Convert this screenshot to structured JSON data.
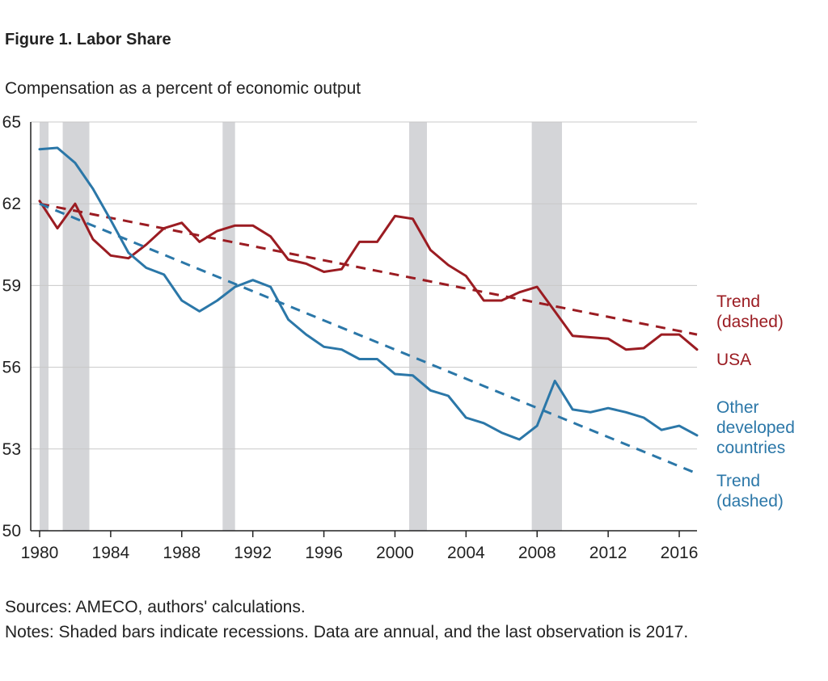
{
  "figure": {
    "title": "Figure 1. Labor Share",
    "subtitle": "Compensation as a percent of economic output",
    "sources": "Sources: AMECO, authors' calculations.",
    "notes": "Notes: Shaded bars indicate recessions. Data are annual, and the last observation is 2017."
  },
  "colors": {
    "usa": "#9b1c22",
    "other": "#2b77a8",
    "recession": "#d4d5d8",
    "grid": "#c8c8c8",
    "axis": "#222222"
  },
  "chart_data": {
    "type": "line",
    "title": "Figure 1. Labor Share",
    "subtitle": "Compensation as a percent of economic output",
    "xlim": [
      1979.5,
      2017
    ],
    "ylim": [
      50,
      65
    ],
    "x_ticks": [
      1980,
      1984,
      1988,
      1992,
      1996,
      2000,
      2004,
      2008,
      2012,
      2016
    ],
    "y_ticks": [
      50,
      53,
      56,
      59,
      62,
      65
    ],
    "grid": "horizontal",
    "recessions": [
      [
        1980.0,
        1980.5
      ],
      [
        1981.3,
        1982.8
      ],
      [
        1990.3,
        1991.0
      ],
      [
        2000.8,
        2001.8
      ],
      [
        2007.7,
        2009.4
      ]
    ],
    "x": [
      1980,
      1981,
      1982,
      1983,
      1984,
      1985,
      1986,
      1987,
      1988,
      1989,
      1990,
      1991,
      1992,
      1993,
      1994,
      1995,
      1996,
      1997,
      1998,
      1999,
      2000,
      2001,
      2002,
      2003,
      2004,
      2005,
      2006,
      2007,
      2008,
      2009,
      2010,
      2011,
      2012,
      2013,
      2014,
      2015,
      2016,
      2017
    ],
    "series": [
      {
        "name": "USA",
        "style": "solid",
        "values": [
          62.1,
          61.1,
          62.0,
          60.7,
          60.1,
          60.0,
          60.5,
          61.1,
          61.3,
          60.6,
          61.0,
          61.2,
          61.2,
          60.8,
          59.95,
          59.8,
          59.5,
          59.6,
          60.6,
          60.6,
          61.55,
          61.45,
          60.3,
          59.75,
          59.35,
          58.45,
          58.45,
          58.75,
          58.95,
          58.05,
          57.15,
          57.1,
          57.05,
          56.65,
          56.7,
          57.2,
          57.2,
          56.65
        ]
      },
      {
        "name": "Trend (dashed)",
        "label_for": "USA",
        "style": "dashed",
        "values": [
          62.0,
          57.2
        ],
        "x": [
          1980,
          2017
        ]
      },
      {
        "name": "Other developed countries",
        "style": "solid",
        "values": [
          64.0,
          64.05,
          63.5,
          62.55,
          61.4,
          60.2,
          59.65,
          59.4,
          58.45,
          58.05,
          58.45,
          58.95,
          59.2,
          58.95,
          57.75,
          57.2,
          56.75,
          56.65,
          56.3,
          56.3,
          55.75,
          55.7,
          55.15,
          54.95,
          54.15,
          53.95,
          53.6,
          53.35,
          53.85,
          55.5,
          54.45,
          54.35,
          54.5,
          54.35,
          54.15,
          53.7,
          53.85,
          53.5
        ]
      },
      {
        "name": "Trend (dashed)",
        "label_for": "Other developed countries",
        "style": "dashed",
        "values": [
          62.0,
          52.1
        ],
        "x": [
          1980,
          2017
        ]
      }
    ],
    "labels": {
      "usa_trend_line1": "Trend",
      "usa_trend_line2": "(dashed)",
      "usa": "USA",
      "other_line1": "Other",
      "other_line2": "developed",
      "other_line3": "countries",
      "other_trend_line1": "Trend",
      "other_trend_line2": "(dashed)"
    }
  }
}
